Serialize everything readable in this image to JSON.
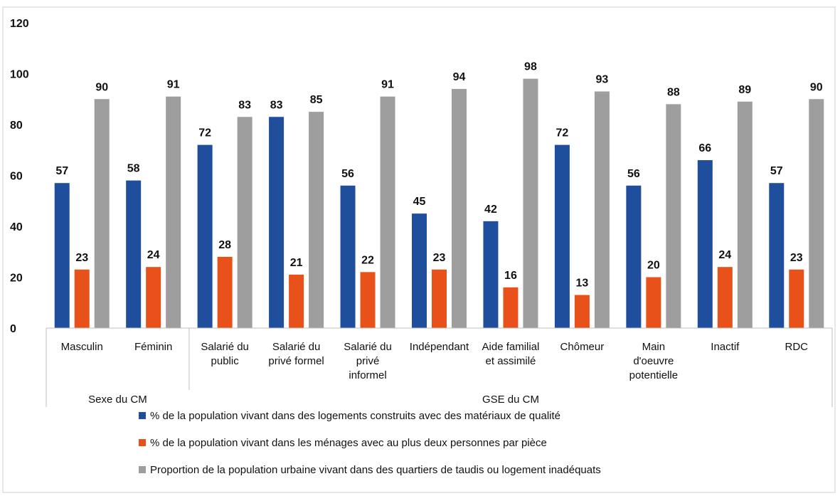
{
  "chart_data": {
    "type": "bar",
    "categories": [
      "Masculin",
      "Féminin",
      "Salarié du public",
      "Salarié du privé formel",
      "Salarié du privé informel",
      "Indépendant",
      "Aide familial et assimilé",
      "Chômeur",
      "Main d'oeuvre potentielle",
      "Inactif",
      "RDC"
    ],
    "category_lines": [
      [
        "Masculin"
      ],
      [
        "Féminin"
      ],
      [
        "Salarié du",
        "public"
      ],
      [
        "Salarié du",
        "privé formel"
      ],
      [
        "Salarié du",
        "privé",
        "informel"
      ],
      [
        "Indépendant"
      ],
      [
        "Aide familial",
        "et assimilé"
      ],
      [
        "Chômeur"
      ],
      [
        "Main",
        "d'oeuvre",
        "potentielle"
      ],
      [
        "Inactif"
      ],
      [
        "RDC"
      ]
    ],
    "groups": [
      {
        "label": "Sexe du CM",
        "span": 2
      },
      {
        "label": "GSE du CM",
        "span": 9
      }
    ],
    "series": [
      {
        "name": "% de la population vivant dans des logements construits avec des matériaux de qualité",
        "color": "#1f4e9c",
        "values": [
          57,
          58,
          72,
          83,
          56,
          45,
          42,
          72,
          56,
          66,
          57
        ]
      },
      {
        "name": "% de la population vivant dans les ménages avec au plus deux personnes par pièce",
        "color": "#e8511a",
        "values": [
          23,
          24,
          28,
          21,
          22,
          23,
          16,
          13,
          20,
          24,
          23
        ]
      },
      {
        "name": "Proportion de la population urbaine vivant dans des quartiers de taudis ou logement inadéquats",
        "color": "#9e9e9e",
        "values": [
          90,
          91,
          83,
          85,
          91,
          94,
          98,
          93,
          88,
          89,
          90
        ]
      }
    ],
    "ylim": [
      0,
      120
    ],
    "yticks": [
      0,
      20,
      40,
      60,
      80,
      100,
      120
    ],
    "grid": false,
    "legend_position": "bottom"
  }
}
